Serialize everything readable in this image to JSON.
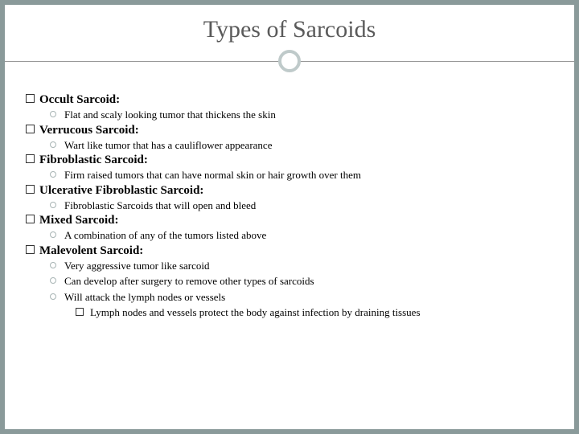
{
  "colors": {
    "page_bg": "#8a9a9a",
    "slide_bg": "#ffffff",
    "title_color": "#5a5a5a",
    "divider_color": "#999999",
    "circle_border": "#bfcaca",
    "text_color": "#000000",
    "bullet_ring": "#a8b4b4"
  },
  "typography": {
    "title_fontsize": 30,
    "lvl1_fontsize": 15,
    "lvl2_fontsize": 13,
    "lvl3_fontsize": 13,
    "title_family": "Georgia",
    "body_family": "Georgia"
  },
  "title": "Types of Sarcoids",
  "sections": {
    "s0": {
      "heading": "Occult Sarcoid:",
      "b0": "Flat and scaly looking tumor that thickens the skin"
    },
    "s1": {
      "heading": "Verrucous Sarcoid:",
      "b0": "Wart like tumor that has a cauliflower appearance"
    },
    "s2": {
      "heading": "Fibroblastic Sarcoid:",
      "b0": "Firm raised tumors that can have normal skin or hair growth over them"
    },
    "s3": {
      "heading": "Ulcerative Fibroblastic Sarcoid:",
      "b0": "Fibroblastic Sarcoids that will open and bleed"
    },
    "s4": {
      "heading": "Mixed Sarcoid:",
      "b0": "A combination of any of the tumors listed above"
    },
    "s5": {
      "heading": "Malevolent Sarcoid:",
      "b0": "Very aggressive tumor like sarcoid",
      "b1": "Can develop after surgery to remove other types of sarcoids",
      "b2": "Will attack the lymph nodes or vessels",
      "sub0": "Lymph nodes and vessels protect the body against infection by draining tissues"
    }
  }
}
